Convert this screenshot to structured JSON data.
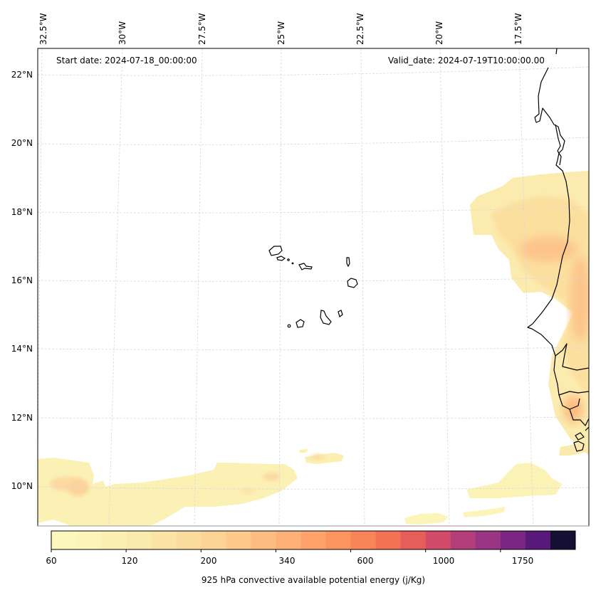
{
  "map": {
    "start_date_label": "Start date: 2024-07-18_00:00:00",
    "valid_date_label": "Valid_date: 2024-07-19T10:00:00.00",
    "lon_ticks": [
      "32.5°W",
      "30°W",
      "27.5°W",
      "25°W",
      "22.5°W",
      "20°W",
      "17.5°W"
    ],
    "lat_ticks": [
      "22°N",
      "20°N",
      "18°N",
      "16°N",
      "14°N",
      "12°N",
      "10°N"
    ],
    "gridline_color": "#d9d9d9",
    "coastline_color": "#000000",
    "region": "Cape Verde Islands and West African coast (Senegal, Gambia, Guinea-Bissau, Guinea)"
  },
  "colorbar": {
    "label": "925 hPa convective available potential energy (j/Kg)",
    "tick_labels": [
      "60",
      "120",
      "200",
      "340",
      "600",
      "1000",
      "1750"
    ],
    "colors": [
      "#fcf8bd",
      "#fcf4b8",
      "#fbefb2",
      "#fbeaad",
      "#fbe3a6",
      "#fbdc9f",
      "#fcd495",
      "#fdca8c",
      "#fdbd81",
      "#feb177",
      "#fea36b",
      "#fc9460",
      "#f88557",
      "#f17255",
      "#e65d5a",
      "#d14b6a",
      "#b33e7a",
      "#9a3584",
      "#7b2685",
      "#571a7b"
    ],
    "last_color": "#150f33"
  }
}
